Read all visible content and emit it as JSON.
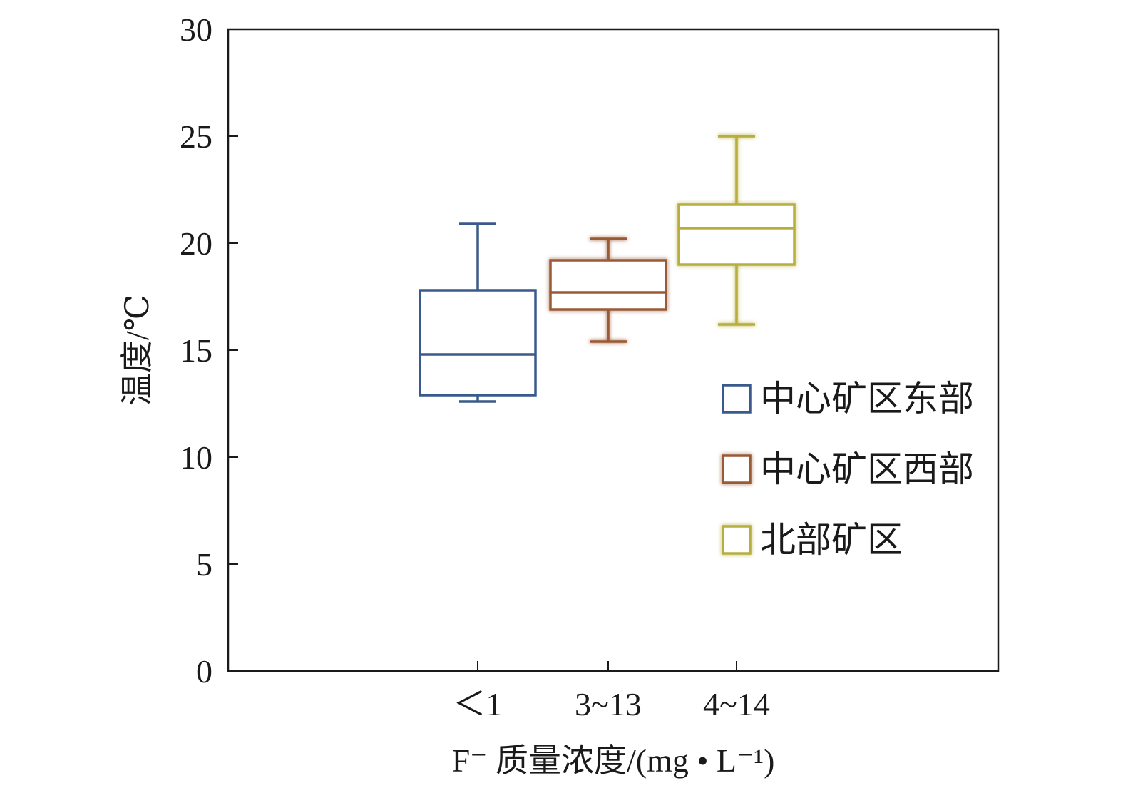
{
  "chart_data": {
    "type": "box",
    "categories": [
      "＜1",
      "3~13",
      "4~14"
    ],
    "series": [
      {
        "name": "中心矿区东部",
        "color": "#3b5a8c",
        "glow": false,
        "min": 12.6,
        "q1": 12.9,
        "median": 14.8,
        "q3": 17.8,
        "max": 20.9
      },
      {
        "name": "中心矿区西部",
        "color": "#9a5a35",
        "glow": true,
        "min": 15.4,
        "q1": 16.9,
        "median": 17.7,
        "q3": 19.2,
        "max": 20.2
      },
      {
        "name": "北部矿区",
        "color": "#b8ae3c",
        "glow": true,
        "min": 16.2,
        "q1": 19.0,
        "median": 20.7,
        "q3": 21.8,
        "max": 25.0
      }
    ],
    "xlabel": "F⁻ 质量浓度/(mg • L⁻¹)",
    "ylabel": "温度/℃",
    "ylim": [
      0,
      30
    ],
    "yticks": [
      "0",
      "5",
      "10",
      "15",
      "20",
      "25",
      "30"
    ],
    "legend_position": "right",
    "grid": false
  }
}
